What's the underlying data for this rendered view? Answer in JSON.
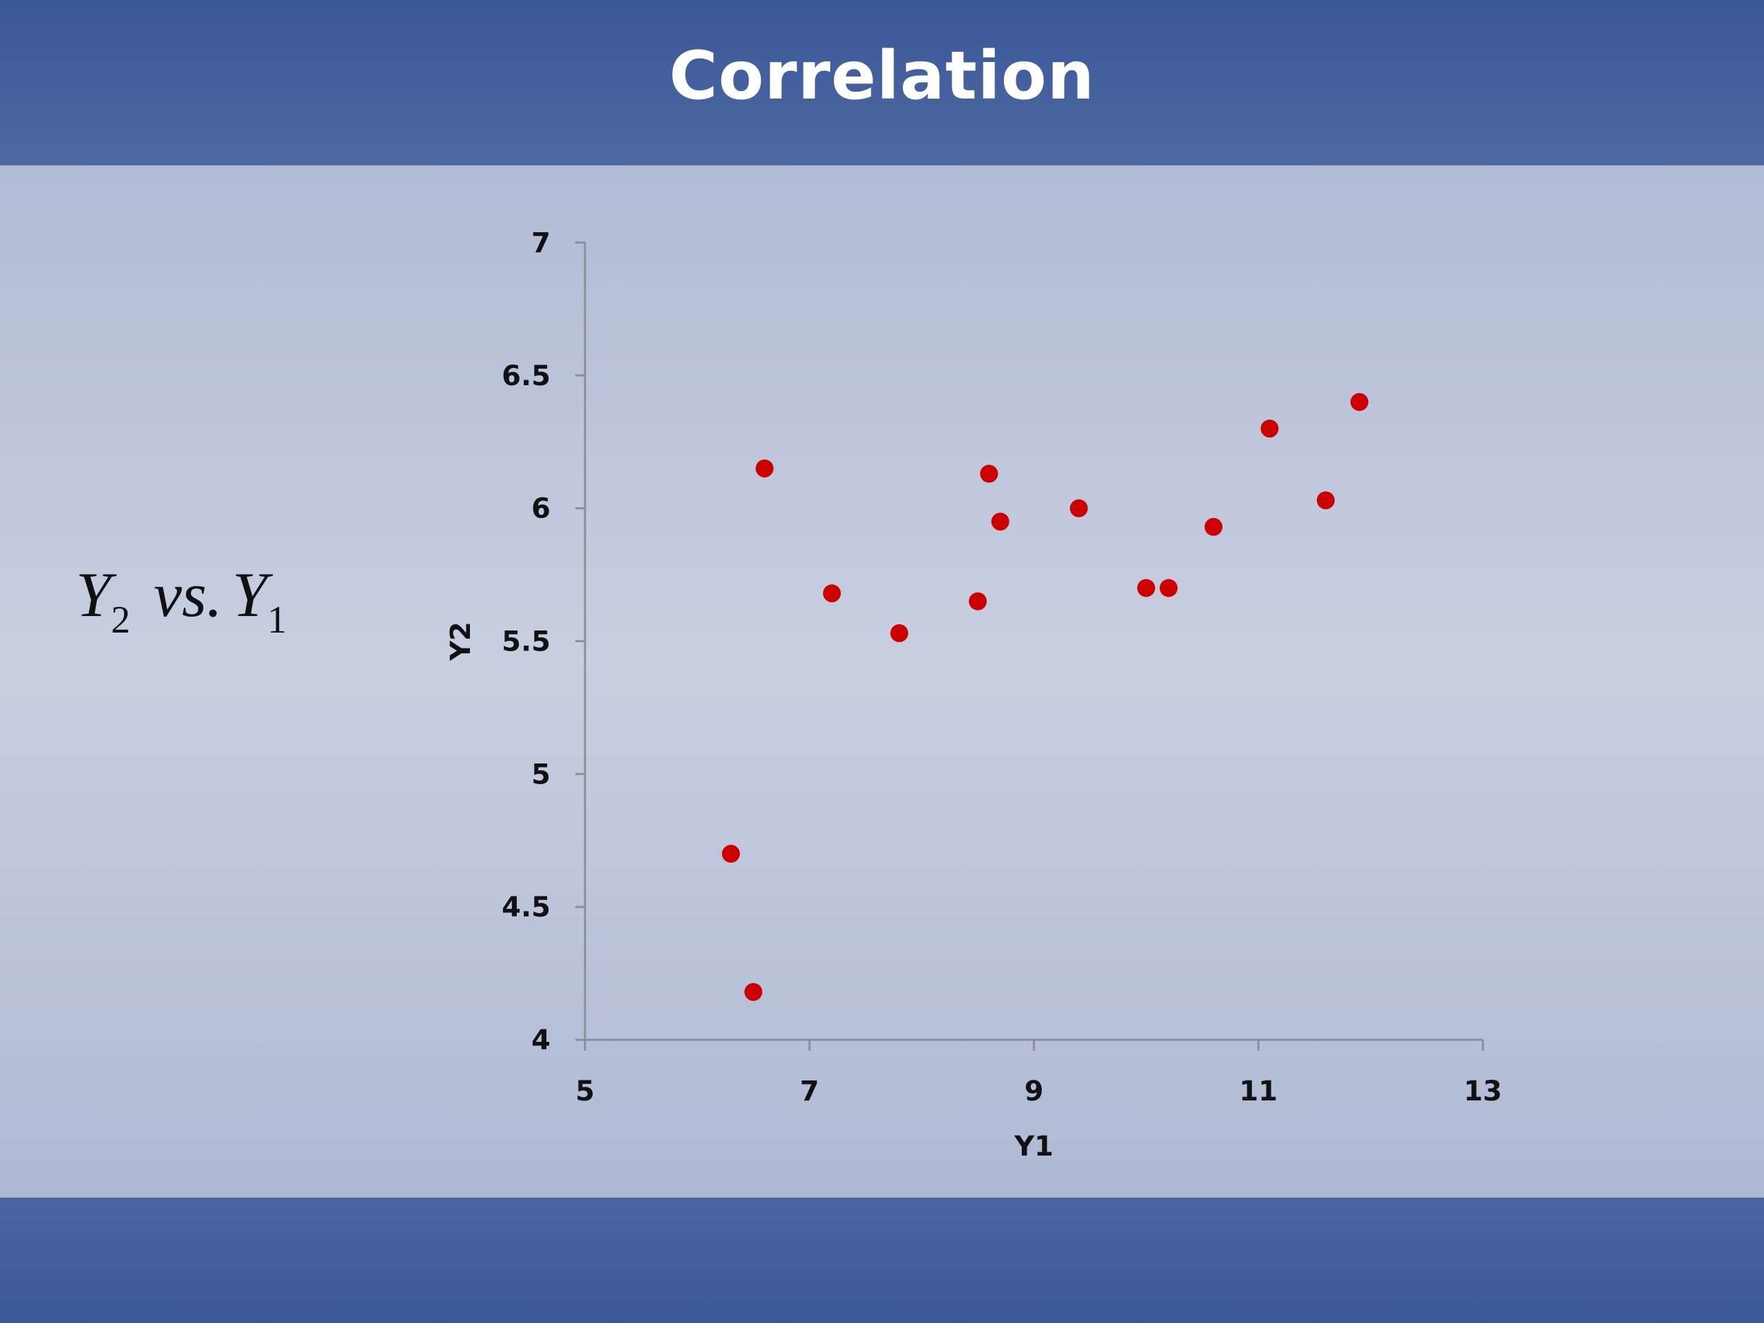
{
  "slide": {
    "title": "Correlation",
    "formula": {
      "y2_letter": "Y",
      "y2_sub": "2",
      "vs": "vs.",
      "y1_letter": "Y",
      "y1_sub": "1"
    }
  },
  "colors": {
    "header_bar": "#3a5797",
    "background": "#c7cfe0",
    "point": "#cc0000",
    "axis": "#8a8f9a",
    "text": "#111111"
  },
  "chart_data": {
    "type": "scatter",
    "xlabel": "Y1",
    "ylabel": "Y2",
    "xlim": [
      5,
      13
    ],
    "ylim": [
      4,
      7
    ],
    "xticks": [
      "5",
      "7",
      "9",
      "11",
      "13"
    ],
    "yticks": [
      "4",
      "4.5",
      "5",
      "5.5",
      "6",
      "6.5",
      "7"
    ],
    "grid": false,
    "legend": false,
    "points": [
      {
        "x": 6.3,
        "y": 4.7
      },
      {
        "x": 6.5,
        "y": 4.18
      },
      {
        "x": 6.6,
        "y": 6.15
      },
      {
        "x": 7.2,
        "y": 5.68
      },
      {
        "x": 7.8,
        "y": 5.53
      },
      {
        "x": 8.5,
        "y": 5.65
      },
      {
        "x": 8.6,
        "y": 6.13
      },
      {
        "x": 8.7,
        "y": 5.95
      },
      {
        "x": 9.4,
        "y": 6.0
      },
      {
        "x": 10.0,
        "y": 5.7
      },
      {
        "x": 10.2,
        "y": 5.7
      },
      {
        "x": 10.6,
        "y": 5.93
      },
      {
        "x": 11.1,
        "y": 6.3
      },
      {
        "x": 11.6,
        "y": 6.03
      },
      {
        "x": 11.9,
        "y": 6.4
      }
    ]
  }
}
